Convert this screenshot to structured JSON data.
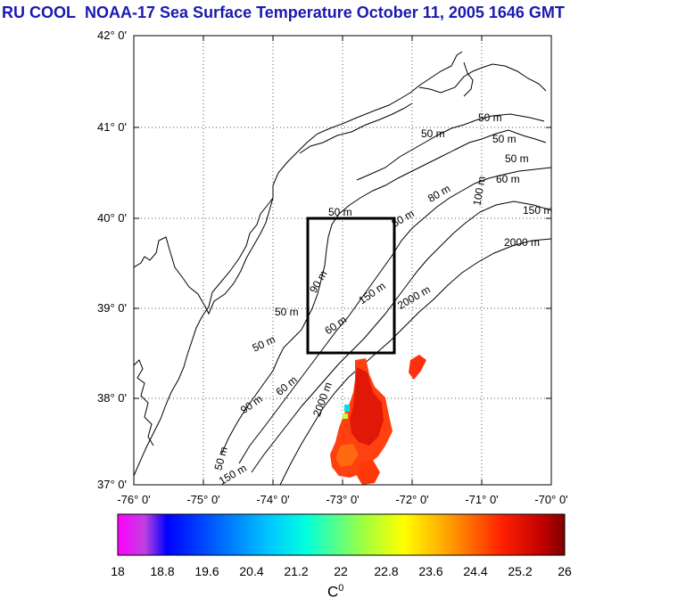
{
  "title": {
    "program": "RU COOL",
    "text": "NOAA-17 Sea Surface Temperature October 11, 2005 1646 GMT",
    "color": "#1a1ab0"
  },
  "map": {
    "lat_labels": [
      "42° 0'",
      "41° 0'",
      "40° 0'",
      "39° 0'",
      "38° 0'",
      "37° 0'"
    ],
    "lon_labels": [
      "-76° 0'",
      "-75° 0'",
      "-74° 0'",
      "-73° 0'",
      "-72° 0'",
      "-71° 0'",
      "-70° 0'"
    ],
    "lat_range": [
      37,
      42
    ],
    "lon_range": [
      -76,
      -70
    ],
    "gridlines": "dotted",
    "study_box": {
      "lon": [
        -73.5,
        -72.25
      ],
      "lat": [
        38.5,
        40.0
      ]
    },
    "contour_labels": [
      "50 m",
      "50 m",
      "50 m",
      "50 m",
      "50 m",
      "60 m",
      "100 m",
      "150 m",
      "50 m",
      "80 m",
      "150 m",
      "2000 m",
      "2000 m",
      "90 m",
      "60 m",
      "50 m",
      "50 m",
      "90 m",
      "60 m",
      "2000 m",
      "50 m",
      "150 m",
      "50 m"
    ]
  },
  "colorbar": {
    "ticks": [
      "18",
      "18.8",
      "19.6",
      "20.4",
      "21.2",
      "22",
      "22.8",
      "23.6",
      "24.4",
      "25.2",
      "26"
    ],
    "range": [
      18,
      26
    ],
    "unit": "C",
    "unit_sup": "0",
    "colors": [
      "#ff00ff",
      "#0000ff",
      "#00c8ff",
      "#00ffff",
      "#ffff00",
      "#ff8000",
      "#ff0000",
      "#800000"
    ]
  }
}
